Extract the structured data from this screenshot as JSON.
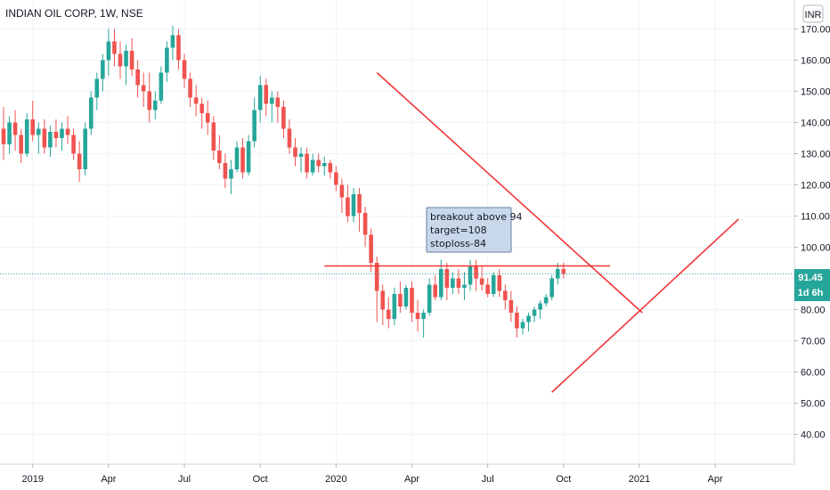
{
  "header": {
    "symbol_title": "INDIAN OIL CORP, 1W, NSE"
  },
  "scale": {
    "currency_button": "INR"
  },
  "price_tag": {
    "value": "91.45",
    "countdown": "1d 6h"
  },
  "annotation": {
    "lines": [
      "breakout above 94",
      "target=108",
      "stoploss-84"
    ]
  },
  "colors": {
    "up": "#26a69a",
    "down": "#ef5350",
    "drawing": "#f23636",
    "grid": "#f0f3fa",
    "axis_text": "#131722",
    "price_tag": "#26a69a",
    "note_bg": "#c8d8ea",
    "note_border": "#6a7fa3"
  },
  "chart_data": {
    "type": "candlestick",
    "title": "INDIAN OIL CORP, 1W, NSE",
    "currency": "INR",
    "ylim": [
      35,
      175
    ],
    "yticks": [
      40,
      50,
      60,
      70,
      80,
      90,
      100,
      110,
      120,
      130,
      140,
      150,
      160,
      170
    ],
    "ytick_labels": [
      "40.00",
      "50.00",
      "60.00",
      "70.00",
      "80.00",
      "90.00",
      "100.00",
      "110.00",
      "120.00",
      "130.00",
      "140.00",
      "150.00",
      "160.00",
      "170.00"
    ],
    "xticks": [
      "2019",
      "Apr",
      "Jul",
      "Oct",
      "2020",
      "Apr",
      "Jul",
      "Oct",
      "2021",
      "Apr"
    ],
    "xtick_weeks": [
      5,
      18,
      31,
      44,
      57,
      70,
      83,
      96,
      109,
      122
    ],
    "last_price": 91.45,
    "grid": true,
    "series": [
      {
        "type": "candles",
        "ohlc": [
          [
            138,
            145,
            128,
            133
          ],
          [
            133,
            142,
            130,
            140
          ],
          [
            140,
            144,
            131,
            136
          ],
          [
            136,
            138,
            127,
            130
          ],
          [
            130,
            143,
            129,
            141
          ],
          [
            141,
            147,
            134,
            136
          ],
          [
            136,
            140,
            130,
            138
          ],
          [
            138,
            141,
            130,
            132
          ],
          [
            132,
            139,
            129,
            137
          ],
          [
            137,
            141,
            132,
            135
          ],
          [
            135,
            140,
            131,
            138
          ],
          [
            138,
            142,
            133,
            136
          ],
          [
            136,
            138,
            128,
            130
          ],
          [
            130,
            134,
            121,
            125
          ],
          [
            125,
            140,
            123,
            138
          ],
          [
            138,
            150,
            136,
            148
          ],
          [
            148,
            156,
            144,
            154
          ],
          [
            154,
            162,
            150,
            160
          ],
          [
            160,
            170,
            155,
            166
          ],
          [
            166,
            170,
            158,
            162
          ],
          [
            162,
            166,
            154,
            158
          ],
          [
            158,
            165,
            152,
            163
          ],
          [
            163,
            167,
            155,
            157
          ],
          [
            157,
            160,
            148,
            152
          ],
          [
            152,
            156,
            145,
            150
          ],
          [
            150,
            156,
            140,
            144
          ],
          [
            144,
            150,
            141,
            147
          ],
          [
            147,
            158,
            146,
            156
          ],
          [
            156,
            166,
            153,
            164
          ],
          [
            164,
            171,
            160,
            168
          ],
          [
            168,
            170,
            157,
            160
          ],
          [
            160,
            162,
            151,
            154
          ],
          [
            154,
            156,
            145,
            148
          ],
          [
            148,
            152,
            142,
            146
          ],
          [
            146,
            148,
            138,
            143
          ],
          [
            143,
            147,
            136,
            140
          ],
          [
            140,
            142,
            128,
            131
          ],
          [
            131,
            136,
            125,
            127
          ],
          [
            127,
            130,
            119,
            122
          ],
          [
            122,
            128,
            117,
            125
          ],
          [
            125,
            134,
            124,
            132
          ],
          [
            132,
            135,
            122,
            124
          ],
          [
            124,
            136,
            123,
            134
          ],
          [
            134,
            148,
            132,
            144
          ],
          [
            144,
            155,
            140,
            152
          ],
          [
            152,
            154,
            142,
            146
          ],
          [
            146,
            150,
            140,
            148
          ],
          [
            148,
            150,
            140,
            145
          ],
          [
            145,
            147,
            135,
            138
          ],
          [
            138,
            141,
            130,
            132
          ],
          [
            132,
            135,
            126,
            129
          ],
          [
            129,
            132,
            124,
            130
          ],
          [
            130,
            132,
            122,
            124
          ],
          [
            124,
            130,
            123,
            128
          ],
          [
            128,
            130,
            124,
            126
          ],
          [
            126,
            129,
            123,
            127
          ],
          [
            127,
            128,
            122,
            124
          ],
          [
            124,
            126,
            118,
            120
          ],
          [
            120,
            122,
            111,
            116
          ],
          [
            116,
            120,
            108,
            110
          ],
          [
            110,
            119,
            108,
            117
          ],
          [
            117,
            119,
            105,
            111
          ],
          [
            111,
            113,
            100,
            104
          ],
          [
            104,
            106,
            92,
            95
          ],
          [
            95,
            97,
            76,
            86
          ],
          [
            86,
            88,
            75,
            80
          ],
          [
            80,
            84,
            74,
            77
          ],
          [
            77,
            87,
            75,
            85
          ],
          [
            85,
            89,
            79,
            81
          ],
          [
            81,
            88,
            80,
            87
          ],
          [
            87,
            89,
            76,
            79
          ],
          [
            79,
            83,
            73,
            77
          ],
          [
            77,
            80,
            71,
            79
          ],
          [
            79,
            90,
            78,
            88
          ],
          [
            88,
            91,
            83,
            84
          ],
          [
            84,
            96,
            83,
            93
          ],
          [
            93,
            95,
            83,
            87
          ],
          [
            87,
            92,
            85,
            90
          ],
          [
            90,
            93,
            85,
            87
          ],
          [
            87,
            92,
            83,
            88
          ],
          [
            88,
            96,
            86,
            94
          ],
          [
            94,
            96,
            86,
            90
          ],
          [
            90,
            94,
            86,
            88
          ],
          [
            88,
            90,
            84,
            85
          ],
          [
            85,
            92,
            84,
            91
          ],
          [
            91,
            93,
            84,
            86
          ],
          [
            86,
            88,
            80,
            83
          ],
          [
            83,
            86,
            76,
            79
          ],
          [
            79,
            81,
            71,
            74
          ],
          [
            74,
            77,
            72,
            76
          ],
          [
            76,
            79,
            73,
            78
          ],
          [
            78,
            81,
            76,
            80
          ],
          [
            80,
            83,
            77,
            82
          ],
          [
            82,
            85,
            81,
            84
          ],
          [
            84,
            91,
            83,
            90
          ],
          [
            90,
            95,
            88,
            93
          ],
          [
            93,
            95,
            90,
            91.45
          ]
        ]
      }
    ],
    "drawings": {
      "descending_trendline": [
        [
          64,
          156
        ],
        [
          109.5,
          79
        ]
      ],
      "ascending_trendline": [
        [
          94,
          53.5
        ],
        [
          126,
          109
        ]
      ],
      "horizontal_level": {
        "price": 94,
        "from_week": 55,
        "to_week": 104
      }
    }
  }
}
